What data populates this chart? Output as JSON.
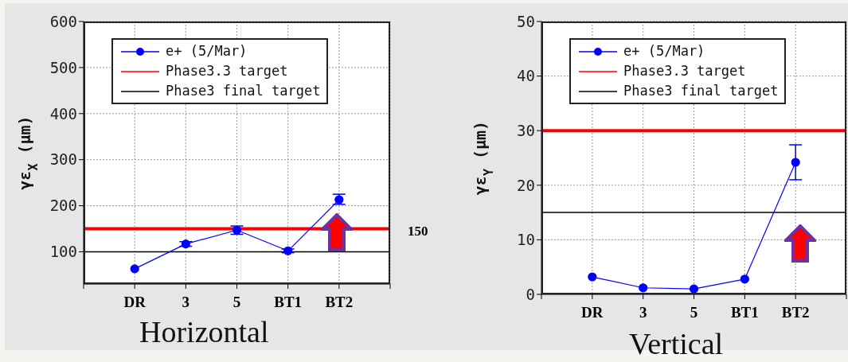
{
  "chart_data": [
    {
      "type": "line",
      "xlabel": "Horizontal",
      "ylabel": "γε$_{X}$ (μm)",
      "categories": [
        null,
        "DR",
        "3",
        "5",
        "BT1",
        "BT2",
        null
      ],
      "series": [
        {
          "name": "e+ (5/Mar)",
          "color": "#0000ff",
          "values": [
            null,
            63,
            117,
            147,
            102,
            213,
            null
          ],
          "errors": [
            null,
            null,
            [
              112,
              122
            ],
            [
              138,
              156
            ],
            [
              98,
              106
            ],
            [
              203,
              225
            ],
            null
          ]
        }
      ],
      "ref_lines": [
        {
          "axis": "y",
          "value": 150,
          "label": "Phase3.3 target",
          "color": "#ff0000"
        },
        {
          "axis": "y",
          "value": 100,
          "label": "Phase3 final target",
          "color": "#000000"
        }
      ],
      "annotations": [
        "150"
      ],
      "ylim": [
        30,
        600
      ],
      "yticks": [
        100,
        200,
        300,
        400,
        500,
        600
      ],
      "grid": true,
      "legend": "top",
      "marker": "circle",
      "line_style": "solid"
    },
    {
      "type": "line",
      "xlabel": "Vertical",
      "ylabel": "γε$_{Y}$ (μm)",
      "categories": [
        null,
        "DR",
        "3",
        "5",
        "BT1",
        "BT2",
        null
      ],
      "series": [
        {
          "name": "e+ (5/Mar)",
          "color": "#0000ff",
          "values": [
            null,
            3.2,
            1.2,
            1.0,
            2.8,
            24.2,
            null
          ],
          "errors": [
            null,
            null,
            null,
            null,
            null,
            [
              21.0,
              27.4
            ],
            null
          ]
        }
      ],
      "ref_lines": [
        {
          "axis": "y",
          "value": 30,
          "label": "Phase3.3 target",
          "color": "#ff0000"
        },
        {
          "axis": "y",
          "value": 15,
          "label": "Phase3 final target",
          "color": "#000000"
        }
      ],
      "ylim": [
        0,
        50
      ],
      "yticks": [
        0,
        10,
        20,
        30,
        40,
        50
      ],
      "grid": true,
      "legend": "top",
      "marker": "circle",
      "line_style": "solid"
    }
  ]
}
